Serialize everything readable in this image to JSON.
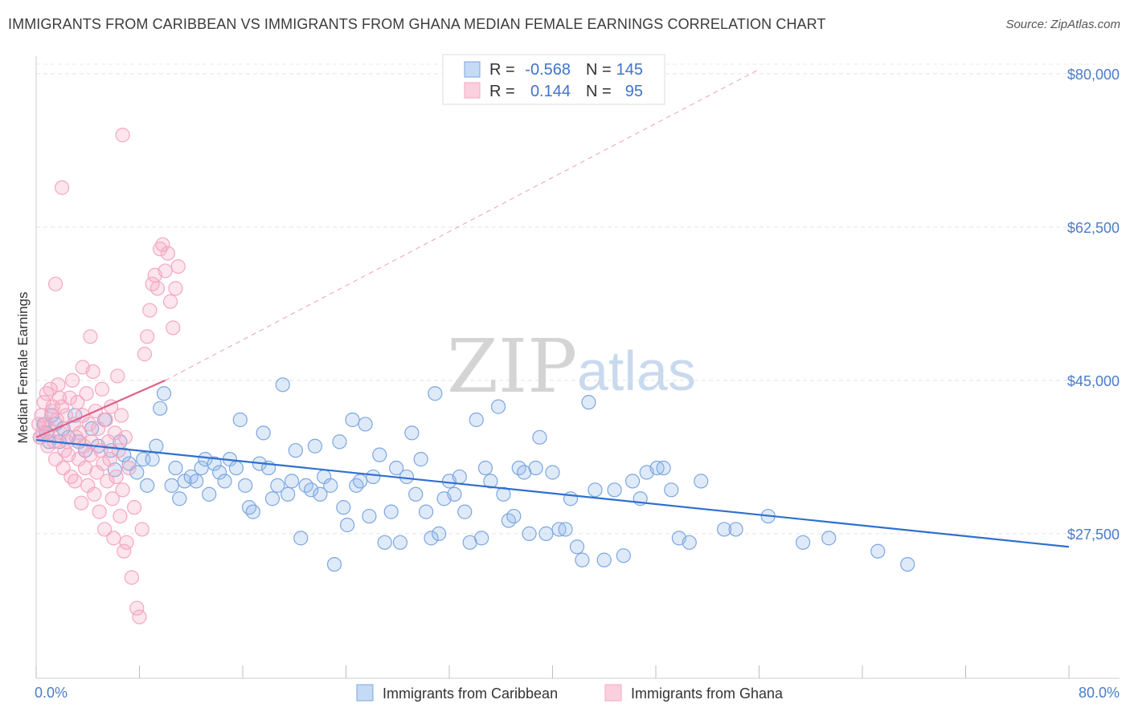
{
  "chart_data": {
    "type": "scatter",
    "title": "IMMIGRANTS FROM CARIBBEAN VS IMMIGRANTS FROM GHANA MEDIAN FEMALE EARNINGS CORRELATION CHART",
    "source": "Source: ZipAtlas.com",
    "xlabel": "",
    "ylabel": "Median Female Earnings",
    "xlim": [
      0,
      80
    ],
    "ylim": [
      11000,
      82000
    ],
    "x_tick_labels": [
      "0.0%",
      "80.0%"
    ],
    "y_ticks": [
      {
        "value": 27500,
        "label": "$27,500"
      },
      {
        "value": 45000,
        "label": "$45,000"
      },
      {
        "value": 62500,
        "label": "$62,500"
      },
      {
        "value": 80000,
        "label": "$80,000"
      }
    ],
    "watermark": {
      "part1": "ZIP",
      "part2": "atlas"
    },
    "legend": [
      {
        "r_label": "R =",
        "r_value": "-0.568",
        "n_label": "N =",
        "n_value": "145"
      },
      {
        "r_label": "R =",
        "r_value": "0.144",
        "n_label": "N =",
        "n_value": "95"
      }
    ],
    "series": [
      {
        "name": "Immigrants from Caribbean",
        "color": "#7ba7e0",
        "line_color": "#2f6fcf",
        "trend": {
          "x0": 0.0,
          "y0": 38200,
          "x1": 80.0,
          "y1": 26000,
          "dashed": false
        },
        "points": [
          [
            0.3,
            38500
          ],
          [
            0.6,
            40000
          ],
          [
            0.8,
            39000
          ],
          [
            1.0,
            38000
          ],
          [
            1.2,
            41000
          ],
          [
            1.5,
            40000
          ],
          [
            1.8,
            38000
          ],
          [
            2.1,
            39500
          ],
          [
            2.5,
            38500
          ],
          [
            3.0,
            41000
          ],
          [
            3.3,
            38000
          ],
          [
            3.8,
            37000
          ],
          [
            4.3,
            39500
          ],
          [
            4.8,
            37500
          ],
          [
            5.3,
            40500
          ],
          [
            5.8,
            37000
          ],
          [
            6.1,
            34800
          ],
          [
            6.5,
            38000
          ],
          [
            6.8,
            36500
          ],
          [
            7.2,
            35500
          ],
          [
            7.8,
            34500
          ],
          [
            8.3,
            36000
          ],
          [
            8.6,
            33000
          ],
          [
            9.0,
            36000
          ],
          [
            9.3,
            37500
          ],
          [
            9.6,
            41800
          ],
          [
            9.9,
            43500
          ],
          [
            10.5,
            33000
          ],
          [
            10.8,
            35000
          ],
          [
            11.1,
            31500
          ],
          [
            11.5,
            33500
          ],
          [
            12.0,
            34000
          ],
          [
            12.4,
            33500
          ],
          [
            12.8,
            35000
          ],
          [
            13.1,
            36000
          ],
          [
            13.4,
            32000
          ],
          [
            13.8,
            35500
          ],
          [
            14.2,
            34500
          ],
          [
            14.6,
            33500
          ],
          [
            15.0,
            36000
          ],
          [
            15.5,
            35000
          ],
          [
            15.8,
            40500
          ],
          [
            16.2,
            33000
          ],
          [
            16.5,
            30500
          ],
          [
            16.8,
            30000
          ],
          [
            17.3,
            35500
          ],
          [
            17.6,
            39000
          ],
          [
            18.0,
            35000
          ],
          [
            18.3,
            31500
          ],
          [
            18.7,
            33000
          ],
          [
            19.1,
            44500
          ],
          [
            19.5,
            32000
          ],
          [
            19.8,
            33500
          ],
          [
            20.1,
            37000
          ],
          [
            20.5,
            27000
          ],
          [
            20.9,
            33000
          ],
          [
            21.3,
            32500
          ],
          [
            21.6,
            37500
          ],
          [
            22.0,
            32000
          ],
          [
            22.3,
            34000
          ],
          [
            22.8,
            33000
          ],
          [
            23.1,
            24000
          ],
          [
            23.5,
            38000
          ],
          [
            23.8,
            30500
          ],
          [
            24.1,
            28500
          ],
          [
            24.5,
            40500
          ],
          [
            24.8,
            33000
          ],
          [
            25.1,
            33500
          ],
          [
            25.5,
            40000
          ],
          [
            25.8,
            29500
          ],
          [
            26.1,
            34000
          ],
          [
            26.6,
            36500
          ],
          [
            27.0,
            26500
          ],
          [
            27.5,
            30000
          ],
          [
            27.9,
            35000
          ],
          [
            28.2,
            26500
          ],
          [
            28.7,
            34000
          ],
          [
            29.1,
            39000
          ],
          [
            29.4,
            32000
          ],
          [
            29.8,
            36000
          ],
          [
            30.2,
            30000
          ],
          [
            30.6,
            27000
          ],
          [
            30.9,
            43500
          ],
          [
            31.2,
            27500
          ],
          [
            31.6,
            31500
          ],
          [
            32.0,
            33500
          ],
          [
            32.4,
            32000
          ],
          [
            32.8,
            34000
          ],
          [
            33.2,
            30000
          ],
          [
            33.6,
            26500
          ],
          [
            34.1,
            40500
          ],
          [
            34.5,
            27000
          ],
          [
            34.8,
            35000
          ],
          [
            35.2,
            33500
          ],
          [
            35.8,
            42000
          ],
          [
            36.2,
            32000
          ],
          [
            36.6,
            29000
          ],
          [
            37.0,
            29500
          ],
          [
            37.4,
            35000
          ],
          [
            37.8,
            34500
          ],
          [
            38.2,
            27500
          ],
          [
            38.7,
            35000
          ],
          [
            39.0,
            38500
          ],
          [
            39.5,
            27500
          ],
          [
            40.0,
            34500
          ],
          [
            40.5,
            28000
          ],
          [
            41.0,
            28000
          ],
          [
            41.4,
            31500
          ],
          [
            41.9,
            26000
          ],
          [
            42.3,
            24500
          ],
          [
            42.8,
            42500
          ],
          [
            43.3,
            32500
          ],
          [
            44.0,
            24500
          ],
          [
            44.8,
            32500
          ],
          [
            45.5,
            25000
          ],
          [
            46.2,
            33500
          ],
          [
            46.8,
            31500
          ],
          [
            47.3,
            34500
          ],
          [
            48.1,
            35000
          ],
          [
            48.6,
            35000
          ],
          [
            49.2,
            32500
          ],
          [
            49.8,
            27000
          ],
          [
            50.6,
            26500
          ],
          [
            51.5,
            33500
          ],
          [
            53.3,
            28000
          ],
          [
            54.2,
            28000
          ],
          [
            56.7,
            29500
          ],
          [
            59.4,
            26500
          ],
          [
            61.4,
            27000
          ],
          [
            65.2,
            25500
          ],
          [
            67.5,
            24000
          ]
        ]
      },
      {
        "name": "Immigrants from Ghana",
        "color": "#f4a7c0",
        "line_color": "#e0608c",
        "trend": {
          "x0": 0.0,
          "y0": 38500,
          "x1": 10.0,
          "y1": 45000,
          "dashed": false
        },
        "trend_ext": {
          "x0": 10.0,
          "y0": 45000,
          "x1": 56.0,
          "y1": 80500,
          "dashed": true
        },
        "points": [
          [
            0.2,
            40000
          ],
          [
            0.3,
            38500
          ],
          [
            0.4,
            41000
          ],
          [
            0.5,
            39000
          ],
          [
            0.6,
            42500
          ],
          [
            0.7,
            40000
          ],
          [
            0.8,
            43500
          ],
          [
            0.9,
            37500
          ],
          [
            1.0,
            39500
          ],
          [
            1.1,
            44000
          ],
          [
            1.2,
            41500
          ],
          [
            1.3,
            42000
          ],
          [
            1.4,
            38000
          ],
          [
            1.5,
            36000
          ],
          [
            1.6,
            40500
          ],
          [
            1.7,
            44500
          ],
          [
            1.8,
            43000
          ],
          [
            1.9,
            39000
          ],
          [
            2.0,
            42000
          ],
          [
            2.1,
            35000
          ],
          [
            2.2,
            37000
          ],
          [
            2.3,
            41000
          ],
          [
            2.4,
            38000
          ],
          [
            2.5,
            36500
          ],
          [
            2.6,
            43000
          ],
          [
            2.7,
            34000
          ],
          [
            2.8,
            45000
          ],
          [
            2.9,
            40000
          ],
          [
            3.0,
            33500
          ],
          [
            3.1,
            38500
          ],
          [
            3.2,
            42500
          ],
          [
            3.3,
            36000
          ],
          [
            3.4,
            39000
          ],
          [
            3.5,
            31000
          ],
          [
            3.6,
            41000
          ],
          [
            3.7,
            37500
          ],
          [
            3.8,
            35000
          ],
          [
            3.9,
            43500
          ],
          [
            4.0,
            33000
          ],
          [
            4.1,
            40000
          ],
          [
            4.2,
            36500
          ],
          [
            4.3,
            38000
          ],
          [
            4.4,
            46000
          ],
          [
            4.5,
            32000
          ],
          [
            4.6,
            41500
          ],
          [
            4.7,
            34500
          ],
          [
            4.8,
            39500
          ],
          [
            4.9,
            30000
          ],
          [
            5.0,
            37000
          ],
          [
            5.1,
            44000
          ],
          [
            5.2,
            35500
          ],
          [
            5.3,
            28000
          ],
          [
            5.4,
            40500
          ],
          [
            5.5,
            33500
          ],
          [
            5.6,
            38000
          ],
          [
            5.7,
            36000
          ],
          [
            5.8,
            42000
          ],
          [
            5.9,
            31500
          ],
          [
            6.0,
            27000
          ],
          [
            6.1,
            39000
          ],
          [
            6.2,
            34000
          ],
          [
            6.3,
            45500
          ],
          [
            6.4,
            37000
          ],
          [
            6.5,
            29500
          ],
          [
            6.6,
            41000
          ],
          [
            6.7,
            32500
          ],
          [
            6.8,
            25500
          ],
          [
            6.9,
            38500
          ],
          [
            7.0,
            26500
          ],
          [
            7.2,
            35000
          ],
          [
            7.4,
            22500
          ],
          [
            7.6,
            30500
          ],
          [
            7.8,
            19000
          ],
          [
            8.0,
            18000
          ],
          [
            8.2,
            28000
          ],
          [
            8.4,
            48000
          ],
          [
            8.6,
            50000
          ],
          [
            8.8,
            53000
          ],
          [
            9.0,
            56000
          ],
          [
            9.2,
            57000
          ],
          [
            9.4,
            55500
          ],
          [
            9.6,
            60000
          ],
          [
            9.8,
            60500
          ],
          [
            10.0,
            57500
          ],
          [
            10.2,
            59500
          ],
          [
            10.4,
            54000
          ],
          [
            10.6,
            51000
          ],
          [
            10.8,
            55500
          ],
          [
            11.0,
            58000
          ],
          [
            1.5,
            56000
          ],
          [
            2.0,
            67000
          ],
          [
            6.7,
            73000
          ],
          [
            3.6,
            46500
          ],
          [
            4.2,
            50000
          ]
        ]
      }
    ]
  },
  "bottom_legend": [
    "Immigrants from Caribbean",
    "Immigrants from Ghana"
  ]
}
